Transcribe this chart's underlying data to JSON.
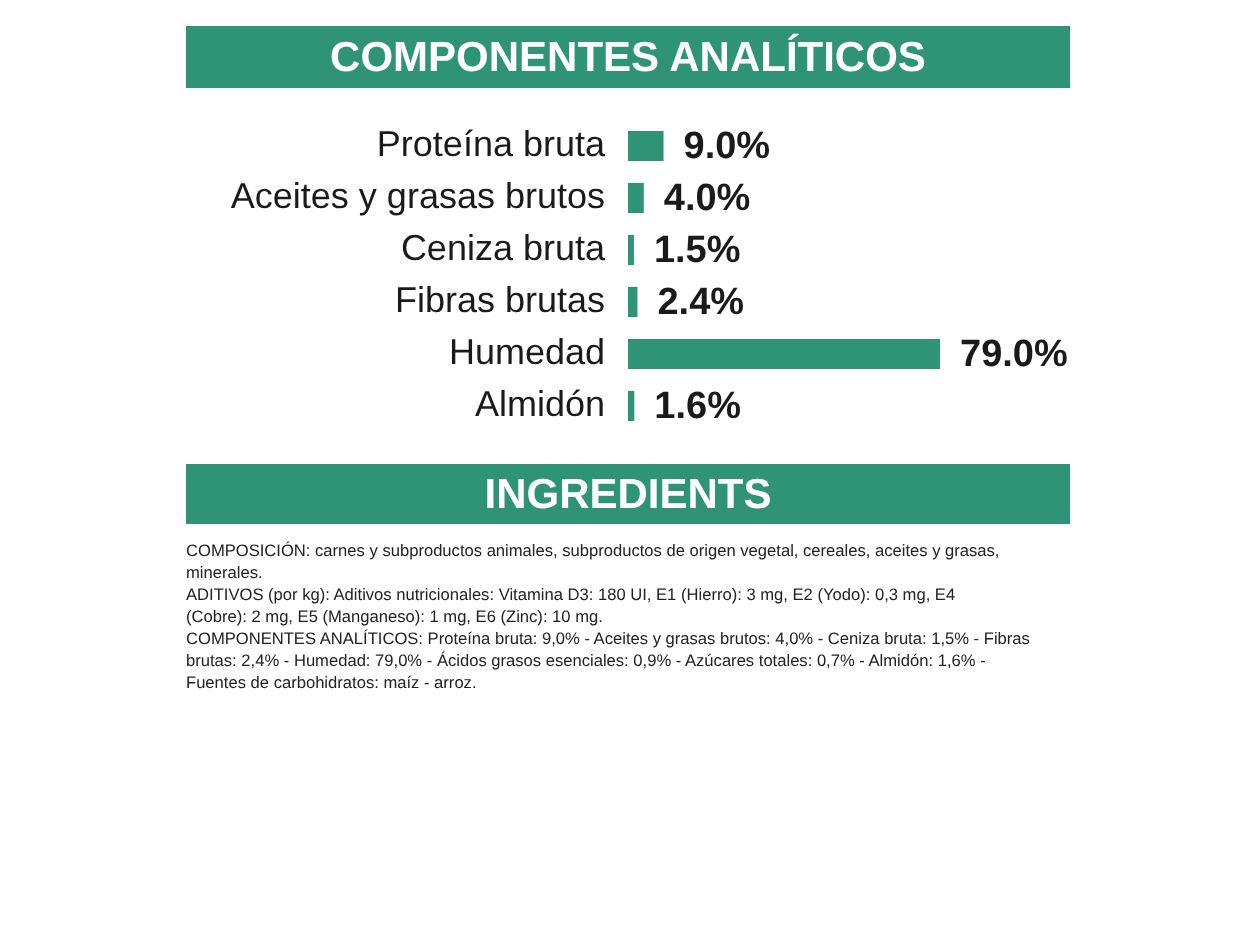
{
  "chart_data": {
    "type": "bar",
    "orientation": "horizontal",
    "title": "COMPONENTES ANALÍTICOS",
    "categories": [
      "Proteína bruta",
      "Aceites y grasas brutos",
      "Ceniza bruta",
      "Fibras brutas",
      "Humedad",
      "Almidón"
    ],
    "values": [
      9.0,
      4.0,
      1.5,
      2.4,
      79.0,
      1.6
    ],
    "value_labels": [
      "9.0%",
      "4.0%",
      "1.5%",
      "2.4%",
      "79.0%",
      "1.6%"
    ],
    "color": "#2f9375",
    "tick_labels": "y",
    "annotations": [
      "INGREDIENTS",
      "COMPOSICIÓN: carnes y subproductos animales, subproductos de origen vegetal, cereales, aceites y grasas, minerales.",
      "ADITIVOS (por kg): Aditivos nutricionales: Vitamina D3: 180 UI, E1 (Hierro): 3 mg, E2 (Yodo): 0,3 mg, E4 (Cobre): 2 mg, E5 (Manganeso): 1 mg, E6 (Zinc): 10 mg.",
      "COMPONENTES ANALÍTICOS: Proteína bruta: 9,0% - Aceites y grasas brutos: 4,0% - Ceniza bruta: 1,5% - Fibras brutas: 2,4% - Humedad: 79,0% - Ácidos grasos esenciales: 0,9% - Azúcares totales: 0,7% - Almidón: 1,6% - Fuentes de carbohidratos: maíz - arroz."
    ]
  }
}
